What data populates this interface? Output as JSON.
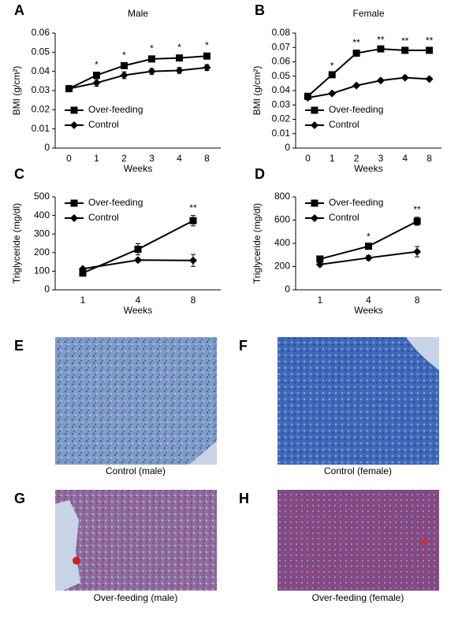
{
  "chart_data": [
    {
      "type": "line",
      "panel_label": "A",
      "title": "Male",
      "x_label": "Weeks",
      "y_label": "BMI (g/cm²)",
      "categories": [
        "0",
        "1",
        "2",
        "3",
        "4",
        "8"
      ],
      "ylim": [
        0,
        0.06
      ],
      "yticks": [
        0,
        0.01,
        0.02,
        0.03,
        0.04,
        0.05,
        0.06
      ],
      "legend": "lower left",
      "series": [
        {
          "name": "Over-feeding",
          "color": "#000000",
          "marker": "square",
          "values": [
            0.031,
            0.038,
            0.043,
            0.0465,
            0.047,
            0.048
          ],
          "errors": [
            0.001,
            0.0015,
            0.0015,
            0.0015,
            0.0015,
            0.0015
          ]
        },
        {
          "name": "Control",
          "color": "#000000",
          "marker": "diamond",
          "values": [
            0.031,
            0.034,
            0.038,
            0.04,
            0.0405,
            0.042
          ],
          "errors": [
            0.001,
            0.0018,
            0.0018,
            0.0015,
            0.0015,
            0.0015
          ]
        }
      ],
      "significance": [
        null,
        "*",
        "*",
        "*",
        "*",
        "*"
      ]
    },
    {
      "type": "line",
      "panel_label": "B",
      "title": "Female",
      "x_label": "Weeks",
      "y_label": "BMI (g/cm²)",
      "categories": [
        "0",
        "1",
        "2",
        "3",
        "4",
        "8"
      ],
      "ylim": [
        0,
        0.08
      ],
      "yticks": [
        0,
        0.01,
        0.02,
        0.03,
        0.04,
        0.05,
        0.06,
        0.07,
        0.08
      ],
      "legend": "lower left",
      "series": [
        {
          "name": "Over-feeding",
          "color": "#000000",
          "marker": "square",
          "values": [
            0.036,
            0.051,
            0.066,
            0.069,
            0.068,
            0.068
          ],
          "errors": [
            0.001,
            0.001,
            0.002,
            0.001,
            0.001,
            0.0015
          ]
        },
        {
          "name": "Control",
          "color": "#000000",
          "marker": "diamond",
          "values": [
            0.035,
            0.038,
            0.0435,
            0.047,
            0.049,
            0.048
          ],
          "errors": [
            0.001,
            0.001,
            0.001,
            0.001,
            0.001,
            0.001
          ]
        }
      ],
      "significance": [
        null,
        "*",
        "**",
        "**",
        "**",
        "**"
      ]
    },
    {
      "type": "line",
      "panel_label": "C",
      "x_label": "Weeks",
      "y_label": "Triglyceride (mg/dl)",
      "categories": [
        "1",
        "4",
        "8"
      ],
      "ylim": [
        0,
        500
      ],
      "yticks": [
        0,
        100,
        200,
        300,
        400,
        500
      ],
      "legend": "upper left",
      "series": [
        {
          "name": "Over-feeding",
          "color": "#000000",
          "marker": "square",
          "values": [
            90,
            218,
            372
          ],
          "errors": [
            8,
            30,
            28
          ]
        },
        {
          "name": "Control",
          "color": "#000000",
          "marker": "diamond",
          "values": [
            113,
            160,
            158
          ],
          "errors": [
            5,
            10,
            32
          ]
        }
      ],
      "significance": [
        null,
        null,
        "**"
      ]
    },
    {
      "type": "line",
      "panel_label": "D",
      "x_label": "Weeks",
      "y_label": "Triglyceride (mg/dl)",
      "categories": [
        "1",
        "4",
        "8"
      ],
      "ylim": [
        0,
        800
      ],
      "yticks": [
        0,
        200,
        400,
        600,
        800
      ],
      "legend": "upper left",
      "series": [
        {
          "name": "Over-feeding",
          "color": "#000000",
          "marker": "square",
          "values": [
            265,
            375,
            590
          ],
          "errors": [
            15,
            15,
            35
          ]
        },
        {
          "name": "Control",
          "color": "#000000",
          "marker": "diamond",
          "values": [
            218,
            275,
            328
          ],
          "errors": [
            10,
            20,
            45
          ]
        }
      ],
      "significance": [
        null,
        "*",
        "**"
      ]
    }
  ],
  "images": [
    {
      "letter": "E",
      "caption": "Control (male)"
    },
    {
      "letter": "F",
      "caption": "Control (female)"
    },
    {
      "letter": "G",
      "caption": "Over-feeding (male)"
    },
    {
      "letter": "H",
      "caption": "Over-feeding (female)"
    }
  ]
}
